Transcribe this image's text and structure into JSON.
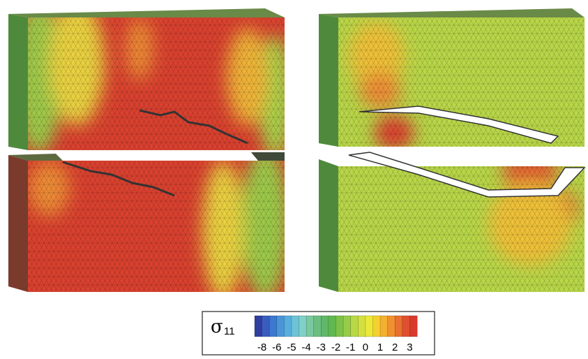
{
  "legend": {
    "symbol": "σ",
    "subscript": "11",
    "ticks": [
      -8,
      -6,
      -5,
      -4,
      -3,
      -2,
      -1,
      0,
      1,
      2,
      3
    ],
    "colors": [
      "#2f3f9e",
      "#3a5bbf",
      "#3b78d0",
      "#4a95d8",
      "#58aedc",
      "#6cc3d8",
      "#7fd0c8",
      "#7ac8a0",
      "#6cbe80",
      "#5fb868",
      "#62b850",
      "#7cc248",
      "#98cc48",
      "#b8d848",
      "#d4e040",
      "#ece838",
      "#f4d030",
      "#f4b030",
      "#f09030",
      "#e87030",
      "#e05030",
      "#d83a2e"
    ]
  }
}
